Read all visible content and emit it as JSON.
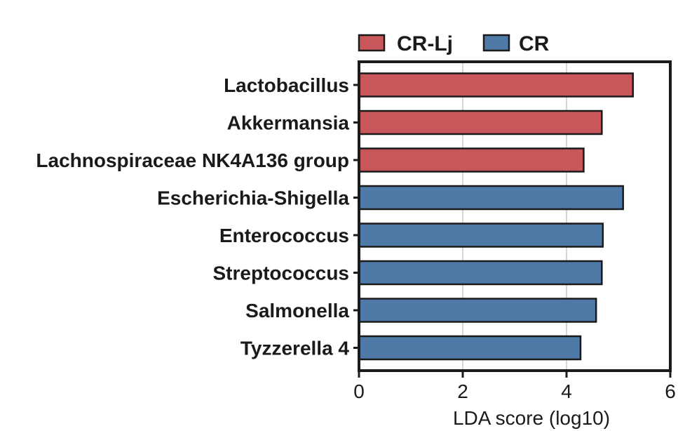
{
  "chart_data": {
    "type": "bar",
    "orientation": "horizontal",
    "categories": [
      "Lactobacillus",
      "Akkermansia",
      "Lachnospiraceae NK4A136 group",
      "Escherichia-Shigella",
      "Enterococcus",
      "Streptococcus",
      "Salmonella",
      "Tyzzerella 4"
    ],
    "values": [
      5.28,
      4.68,
      4.33,
      5.09,
      4.7,
      4.68,
      4.57,
      4.27
    ],
    "groups": [
      "CR-Lj",
      "CR-Lj",
      "CR-Lj",
      "CR",
      "CR",
      "CR",
      "CR",
      "CR"
    ],
    "legend": [
      {
        "name": "CR-Lj",
        "color": "#c9565a"
      },
      {
        "name": "CR",
        "color": "#4f7aa8"
      }
    ],
    "legend_position": "top",
    "title": "",
    "xlabel": "LDA score (log10)",
    "ylabel": "",
    "xlim": [
      0,
      6
    ],
    "xticks": [
      0,
      2,
      4,
      6
    ],
    "grid": "vertical"
  }
}
